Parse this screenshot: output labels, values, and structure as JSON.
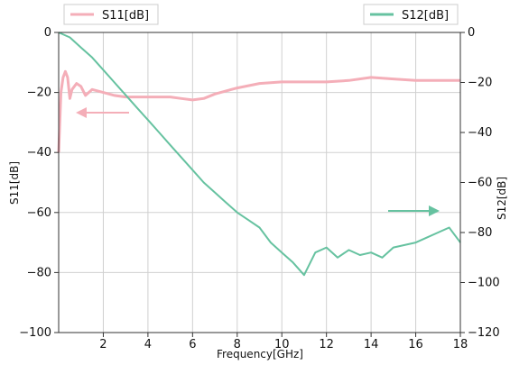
{
  "chart_data": {
    "type": "line",
    "title": "",
    "xlabel": "Frequency[GHz]",
    "ylabel_left": "S11[dB]",
    "ylabel_right": "S12[dB]",
    "xlim": [
      0,
      18
    ],
    "ylim_left": [
      -100,
      0
    ],
    "ylim_right": [
      -120,
      0
    ],
    "x_ticks": [
      2,
      4,
      6,
      8,
      10,
      12,
      14,
      16,
      18
    ],
    "y_ticks_left": [
      0,
      -20,
      -40,
      -60,
      -80,
      -100
    ],
    "y_ticks_right": [
      0,
      -20,
      -40,
      -60,
      -80,
      -100,
      -120
    ],
    "grid": true,
    "legend": [
      {
        "label": "S11[dB]",
        "color": "#f4aeb8",
        "placement": "top-left"
      },
      {
        "label": "S12[dB]",
        "color": "#66c2a0",
        "placement": "top-right"
      }
    ],
    "annotations": [
      {
        "type": "arrow",
        "direction": "left",
        "color": "#f4aeb8",
        "meaning": "S11 uses left axis"
      },
      {
        "type": "arrow",
        "direction": "right",
        "color": "#66c2a0",
        "meaning": "S12 uses right axis"
      }
    ],
    "series": [
      {
        "name": "S11[dB]",
        "axis": "left",
        "color": "#f4aeb8",
        "x": [
          0.0,
          0.1,
          0.2,
          0.3,
          0.4,
          0.5,
          0.6,
          0.8,
          1.0,
          1.2,
          1.5,
          2.0,
          2.5,
          3.0,
          4.0,
          5.0,
          5.5,
          6.0,
          6.5,
          7.0,
          8.0,
          9.0,
          10.0,
          11.0,
          12.0,
          13.0,
          14.0,
          15.0,
          16.0,
          17.0,
          18.0
        ],
        "y": [
          -40,
          -20,
          -15,
          -13,
          -15,
          -22,
          -19,
          -17,
          -18,
          -21,
          -19,
          -20,
          -21,
          -21.5,
          -21.5,
          -21.5,
          -22,
          -22.5,
          -22,
          -20.5,
          -18.5,
          -17,
          -16.5,
          -16.5,
          -16.5,
          -16,
          -15,
          -15.5,
          -16,
          -16,
          -16
        ]
      },
      {
        "name": "S12[dB]",
        "axis": "right",
        "color": "#66c2a0",
        "x": [
          0,
          0.5,
          1,
          1.5,
          2,
          2.5,
          3,
          3.5,
          4,
          4.5,
          5,
          5.5,
          6,
          6.5,
          7,
          7.5,
          8,
          8.5,
          9,
          9.5,
          10,
          10.5,
          11,
          11.5,
          12,
          12.5,
          13,
          13.5,
          14,
          14.5,
          15,
          15.5,
          16,
          16.5,
          17,
          17.5,
          18
        ],
        "y": [
          0,
          -2,
          -6,
          -10,
          -15,
          -20,
          -25,
          -30,
          -35,
          -40,
          -45,
          -50,
          -55,
          -60,
          -64,
          -68,
          -72,
          -75,
          -78,
          -84,
          -88,
          -92,
          -97,
          -88,
          -86,
          -90,
          -87,
          -89,
          -88,
          -90,
          -86,
          -85,
          -84,
          -82,
          -80,
          -78,
          -84
        ]
      }
    ]
  }
}
